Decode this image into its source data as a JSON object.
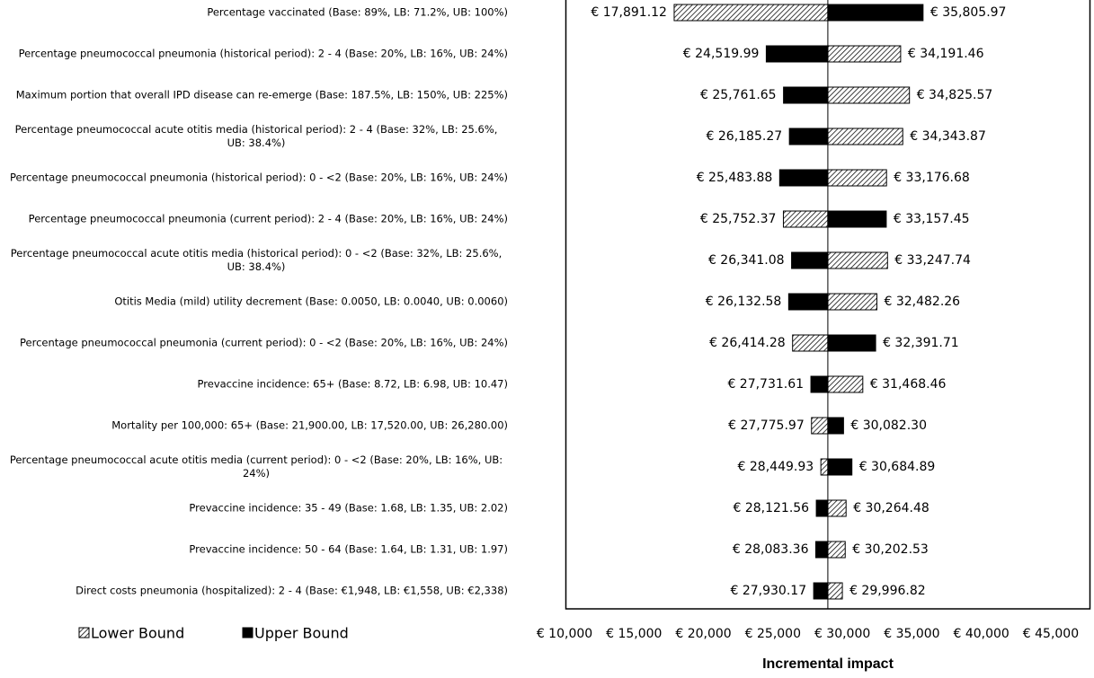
{
  "chart_data": {
    "type": "tornado",
    "x_axis_title": "Incremental impact",
    "categories": [
      "Percentage vaccinated (Base: 89%, LB: 71.2%, UB: 100%)",
      "Percentage pneumococcal pneumonia (historical period):  2 - 4 (Base: 20%, LB: 16%, UB: 24%)",
      "Maximum portion that overall IPD disease can re-emerge (Base: 187.5%, LB: 150%, UB: 225%)",
      "Percentage pneumococcal acute otitis media (historical period): 2 - 4 (Base: 32%, LB: 25.6%, UB: 38.4%)",
      "Percentage pneumococcal pneumonia (historical period):  0 - <2 (Base: 20%, LB: 16%, UB: 24%)",
      "Percentage pneumococcal pneumonia (current period):  2 - 4 (Base: 20%, LB: 16%, UB: 24%)",
      "Percentage pneumococcal acute otitis media (historical period): 0 - <2 (Base: 32%, LB: 25.6%, UB: 38.4%)",
      "Otitis Media (mild) utility decrement (Base: 0.0050, LB: 0.0040, UB: 0.0060)",
      "Percentage pneumococcal pneumonia (current period):  0 - <2 (Base: 20%, LB: 16%, UB: 24%)",
      "Prevaccine incidence: 65+ (Base: 8.72, LB: 6.98, UB: 10.47)",
      "Mortality per 100,000: 65+ (Base: 21,900.00, LB: 17,520.00, UB: 26,280.00)",
      "Percentage pneumococcal acute otitis media (current period): 0 - <2 (Base: 20%, LB: 16%, UB: 24%)",
      "Prevaccine incidence: 35 - 49 (Base: 1.68, LB: 1.35, UB: 2.02)",
      "Prevaccine incidence: 50 - 64 (Base: 1.64, LB: 1.31, UB: 1.97)",
      "Direct costs pneumonia (hospitalized): 2 - 4 (Base:  €1,948, LB:  €1,558, UB:  €2,338)"
    ],
    "base_value": 28952,
    "series": [
      {
        "name": "Lower Bound",
        "color": "#000000",
        "fill": "hatch",
        "values": [
          17891.12,
          34191.46,
          34825.57,
          34343.87,
          33176.68,
          25752.37,
          33247.74,
          32482.26,
          26414.28,
          31468.46,
          27775.97,
          28449.93,
          30264.48,
          30202.53,
          29996.82
        ],
        "value_labels": [
          "€ 17,891.12",
          "€ 34,191.46",
          "€ 34,825.57",
          "€ 34,343.87",
          "€ 33,176.68",
          "€ 25,752.37",
          "€ 33,247.74",
          "€ 32,482.26",
          "€ 26,414.28",
          "€ 31,468.46",
          "€ 27,775.97",
          "€ 28,449.93",
          "€ 30,264.48",
          "€ 30,202.53",
          "€ 29,996.82"
        ]
      },
      {
        "name": "Upper Bound",
        "color": "#000000",
        "fill": "solid",
        "values": [
          35805.97,
          24519.99,
          25761.65,
          26185.27,
          25483.88,
          33157.45,
          26341.08,
          26132.58,
          32391.71,
          27731.61,
          30082.3,
          30684.89,
          28121.56,
          28083.36,
          27930.17
        ],
        "value_labels": [
          "€ 35,805.97",
          "€ 24,519.99",
          "€ 25,761.65",
          "€ 26,185.27",
          "€ 25,483.88",
          "€ 33,157.45",
          "€ 26,341.08",
          "€ 26,132.58",
          "€ 32,391.71",
          "€ 27,731.61",
          "€ 30,082.30",
          "€ 30,684.89",
          "€ 28,121.56",
          "€ 28,083.36",
          "€ 27,930.17"
        ]
      }
    ],
    "xlim": [
      10000,
      47850
    ],
    "xticks": [
      {
        "value": 10000,
        "label": "€ 10,000"
      },
      {
        "value": 15000,
        "label": "€ 15,000"
      },
      {
        "value": 20000,
        "label": "€ 20,000"
      },
      {
        "value": 25000,
        "label": "€ 25,000"
      },
      {
        "value": 30000,
        "label": "€ 30,000"
      },
      {
        "value": 35000,
        "label": "€ 35,000"
      },
      {
        "value": 40000,
        "label": "€ 40,000"
      },
      {
        "value": 45000,
        "label": "€ 45,000"
      }
    ]
  }
}
